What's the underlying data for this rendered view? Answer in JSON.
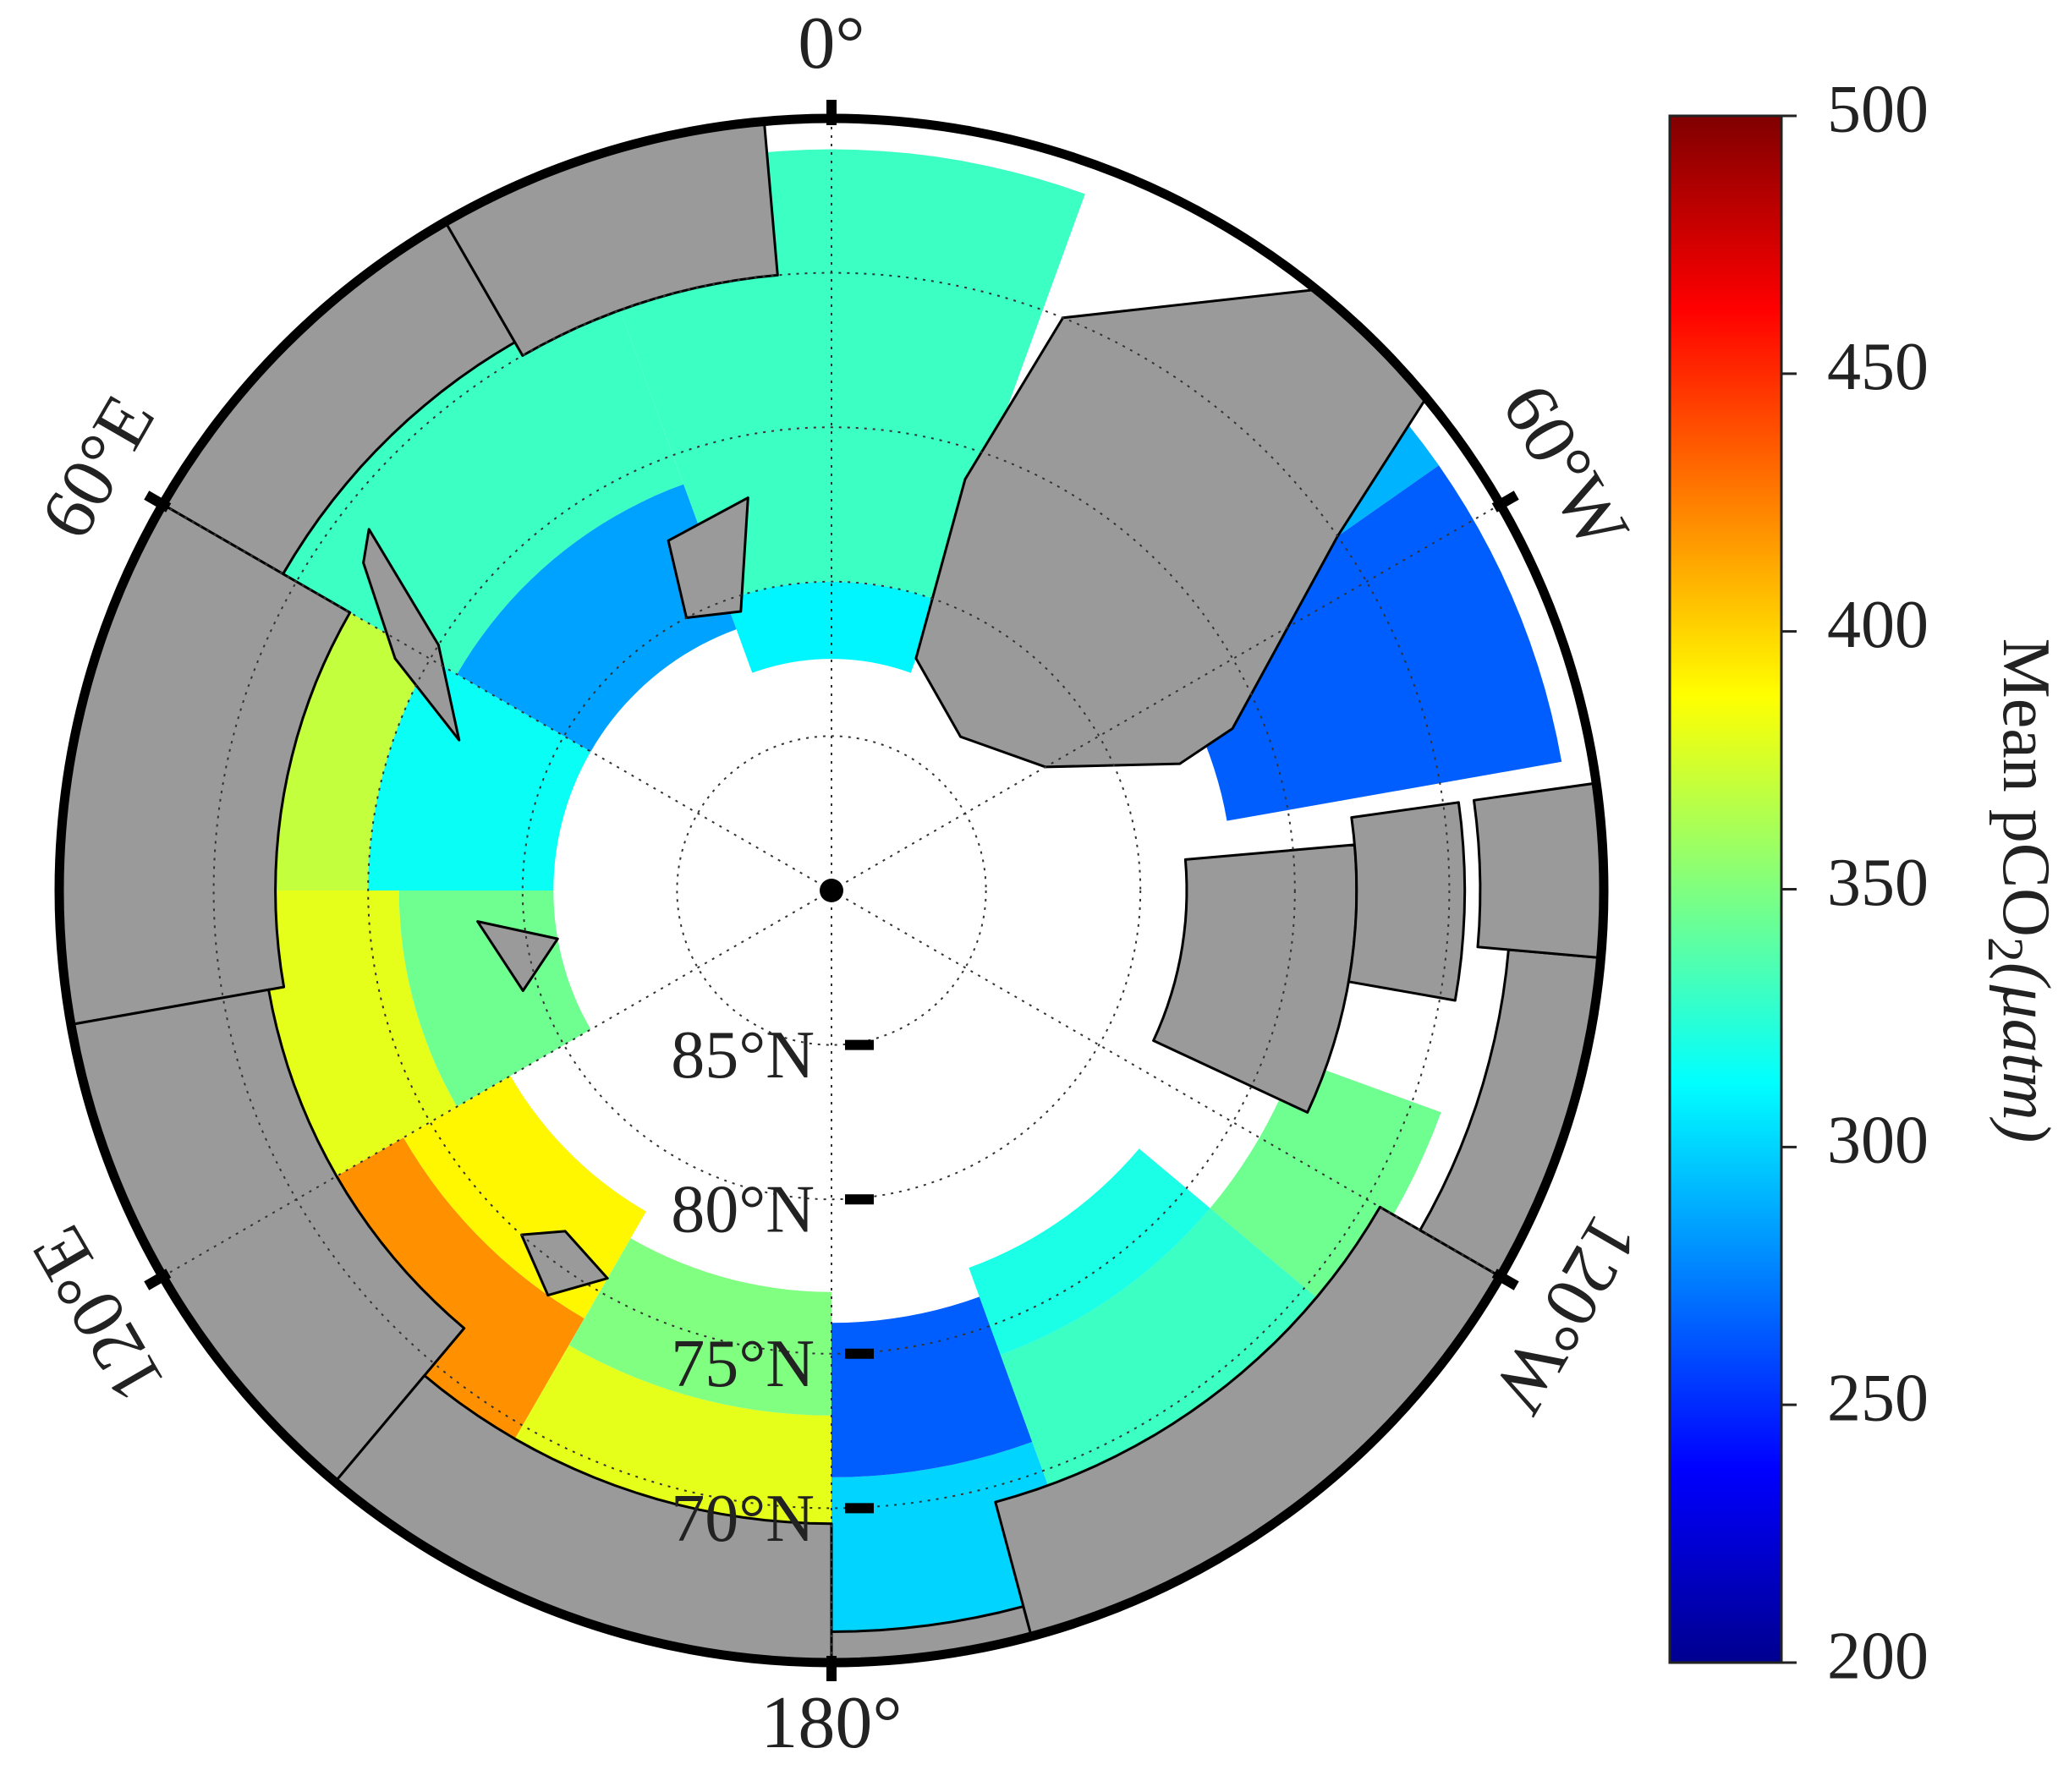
{
  "map": {
    "type": "polar-map",
    "boundary_lat": 65,
    "lon_labels": [
      {
        "value": 0,
        "label": "0°"
      },
      {
        "value": 60,
        "label": "60°E"
      },
      {
        "value": -60,
        "label": "60°W"
      },
      {
        "value": 120,
        "label": "120°E"
      },
      {
        "value": -120,
        "label": "120°W"
      },
      {
        "value": 180,
        "label": "180°"
      }
    ],
    "lat_labels": [
      {
        "value": 85,
        "label": "85°N"
      },
      {
        "value": 80,
        "label": "80°N"
      },
      {
        "value": 75,
        "label": "75°N"
      },
      {
        "value": 70,
        "label": "70°N"
      }
    ],
    "cells": [
      {
        "lon": [
          -20,
          20
        ],
        "lat": [
          66,
          80
        ],
        "value": 330
      },
      {
        "lon": [
          -20,
          20
        ],
        "lat": [
          80,
          82.5
        ],
        "value": 310
      },
      {
        "lon": [
          20,
          60
        ],
        "lat": [
          67,
          76
        ],
        "value": 330
      },
      {
        "lon": [
          20,
          60
        ],
        "lat": [
          76,
          81
        ],
        "value": 285
      },
      {
        "lon": [
          60,
          90
        ],
        "lat": [
          68,
          75
        ],
        "value": 370
      },
      {
        "lon": [
          60,
          90
        ],
        "lat": [
          75,
          81
        ],
        "value": 315
      },
      {
        "lon": [
          90,
          120
        ],
        "lat": [
          71,
          76
        ],
        "value": 380
      },
      {
        "lon": [
          90,
          120
        ],
        "lat": [
          76,
          81
        ],
        "value": 345
      },
      {
        "lon": [
          120,
          150
        ],
        "lat": [
          69,
          74
        ],
        "value": 420
      },
      {
        "lon": [
          120,
          150
        ],
        "lat": [
          74,
          78
        ],
        "value": 390
      },
      {
        "lon": [
          150,
          180
        ],
        "lat": [
          68,
          73
        ],
        "value": 380
      },
      {
        "lon": [
          150,
          180
        ],
        "lat": [
          73,
          77
        ],
        "value": 350
      },
      {
        "lon": [
          -180,
          -160
        ],
        "lat": [
          66,
          71
        ],
        "value": 300
      },
      {
        "lon": [
          -180,
          -160
        ],
        "lat": [
          71,
          76
        ],
        "value": 265
      },
      {
        "lon": [
          -160,
          -130
        ],
        "lat": [
          69,
          74
        ],
        "value": 330
      },
      {
        "lon": [
          -160,
          -130
        ],
        "lat": [
          74,
          77
        ],
        "value": 320
      },
      {
        "lon": [
          -130,
          -110
        ],
        "lat": [
          69,
          74
        ],
        "value": 345
      },
      {
        "lon": [
          -80,
          -55
        ],
        "lat": [
          66,
          77
        ],
        "value": 265
      },
      {
        "lon": [
          -55,
          -45
        ],
        "lat": [
          66,
          72
        ],
        "value": 290
      }
    ],
    "colorbar": {
      "title": "Mean pCO",
      "title_subscript": "2",
      "title_unit": "(μatm)",
      "lim": [
        200,
        500
      ],
      "ticks": [
        200,
        250,
        300,
        350,
        400,
        450,
        500
      ]
    }
  }
}
